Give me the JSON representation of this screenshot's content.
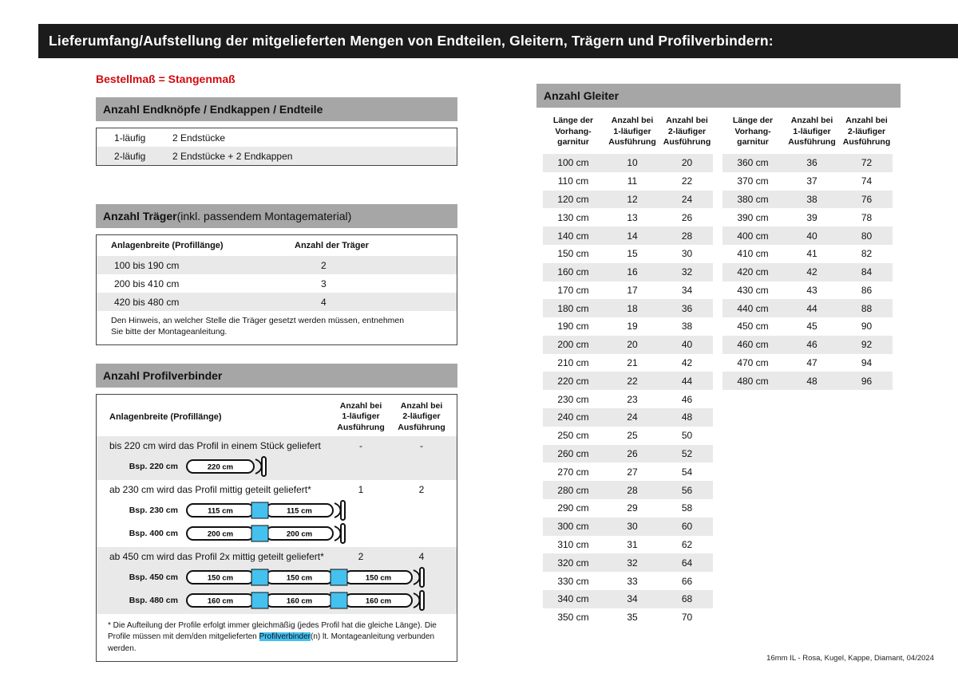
{
  "page": {
    "title": "Lieferumfang/Aufstellung der mitgelieferten Mengen von Endteilen, Gleitern, Trägern und Profilverbindern:",
    "subtitle": "Bestellmaß = Stangenmaß",
    "footer": "16mm IL - Rosa, Kugel, Kappe, Diamant, 04/2024"
  },
  "colors": {
    "header_black": "#1b1b1b",
    "section_bar_gray": "#a6a6a6",
    "row_stripe_gray": "#e9e9e9",
    "accent_red": "#d20a11",
    "highlight_cyan": "#45c1ef"
  },
  "endteile": {
    "header": "Anzahl Endknöpfe / Endkappen / Endteile",
    "rows": [
      {
        "label": "1-läufig",
        "value": "2 Endstücke"
      },
      {
        "label": "2-läufig",
        "value": "2 Endstücke + 2 Endkappen"
      }
    ]
  },
  "traeger": {
    "header_bold": "Anzahl Träger",
    "header_rest": " (inkl. passendem Montagematerial)",
    "col1": "Anlagenbreite (Profillänge)",
    "col2": "Anzahl der Träger",
    "rows": [
      {
        "range": "100 bis 190 cm",
        "count": "2"
      },
      {
        "range": "200 bis 410 cm",
        "count": "3"
      },
      {
        "range": "420 bis 480 cm",
        "count": "4"
      }
    ],
    "note": "Den Hinweis, an welcher Stelle die Träger gesetzt werden müssen, entnehmen Sie bitte der Montageanleitung."
  },
  "profilverbinder": {
    "header": "Anzahl Profilverbinder",
    "col1": "Anlagenbreite (Profillänge)",
    "col2": "Anzahl bei\n1-läufiger\nAusführung",
    "col3": "Anzahl bei\n2-läufiger\nAusführung",
    "sections": [
      {
        "text": "bis 220 cm wird das Profil in einem Stück geliefert",
        "count1": "-",
        "count2": "-",
        "examples": [
          {
            "label": "Bsp. 220 cm",
            "segments": [
              "220 cm"
            ]
          }
        ]
      },
      {
        "text": "ab 230 cm wird das Profil mittig geteilt geliefert*",
        "count1": "1",
        "count2": "2",
        "examples": [
          {
            "label": "Bsp. 230 cm",
            "segments": [
              "115 cm",
              "115 cm"
            ]
          },
          {
            "label": "Bsp. 400 cm",
            "segments": [
              "200 cm",
              "200 cm"
            ]
          }
        ]
      },
      {
        "text": "ab 450 cm wird das Profil 2x mittig geteilt geliefert*",
        "count1": "2",
        "count2": "4",
        "examples": [
          {
            "label": "Bsp. 450 cm",
            "segments": [
              "150 cm",
              "150 cm",
              "150 cm"
            ]
          },
          {
            "label": "Bsp. 480 cm",
            "segments": [
              "160 cm",
              "160 cm",
              "160 cm"
            ]
          }
        ]
      }
    ],
    "footnote_pre": "* Die Aufteilung der Profile erfolgt immer gleichmäßig (jedes Profil hat die gleiche Länge). Die Profile müssen mit dem/den mitgelieferten ",
    "footnote_highlight": "Profilverbinder",
    "footnote_post": "(n) lt. Montageanleitung verbunden werden."
  },
  "gleiter": {
    "header": "Anzahl Gleiter",
    "col_length": "Länge der\nVorhang-\ngarnitur",
    "col_1l": "Anzahl bei\n1-läufiger\nAusführung",
    "col_2l": "Anzahl bei\n2-läufiger\nAusführung",
    "table_left": [
      [
        "100 cm",
        "10",
        "20"
      ],
      [
        "110 cm",
        "11",
        "22"
      ],
      [
        "120 cm",
        "12",
        "24"
      ],
      [
        "130 cm",
        "13",
        "26"
      ],
      [
        "140 cm",
        "14",
        "28"
      ],
      [
        "150 cm",
        "15",
        "30"
      ],
      [
        "160 cm",
        "16",
        "32"
      ],
      [
        "170 cm",
        "17",
        "34"
      ],
      [
        "180 cm",
        "18",
        "36"
      ],
      [
        "190 cm",
        "19",
        "38"
      ],
      [
        "200 cm",
        "20",
        "40"
      ],
      [
        "210 cm",
        "21",
        "42"
      ],
      [
        "220 cm",
        "22",
        "44"
      ],
      [
        "230 cm",
        "23",
        "46"
      ],
      [
        "240 cm",
        "24",
        "48"
      ],
      [
        "250 cm",
        "25",
        "50"
      ],
      [
        "260 cm",
        "26",
        "52"
      ],
      [
        "270 cm",
        "27",
        "54"
      ],
      [
        "280 cm",
        "28",
        "56"
      ],
      [
        "290 cm",
        "29",
        "58"
      ],
      [
        "300 cm",
        "30",
        "60"
      ],
      [
        "310 cm",
        "31",
        "62"
      ],
      [
        "320 cm",
        "32",
        "64"
      ],
      [
        "330 cm",
        "33",
        "66"
      ],
      [
        "340 cm",
        "34",
        "68"
      ],
      [
        "350 cm",
        "35",
        "70"
      ]
    ],
    "table_right": [
      [
        "360 cm",
        "36",
        "72"
      ],
      [
        "370 cm",
        "37",
        "74"
      ],
      [
        "380 cm",
        "38",
        "76"
      ],
      [
        "390 cm",
        "39",
        "78"
      ],
      [
        "400 cm",
        "40",
        "80"
      ],
      [
        "410 cm",
        "41",
        "82"
      ],
      [
        "420 cm",
        "42",
        "84"
      ],
      [
        "430 cm",
        "43",
        "86"
      ],
      [
        "440 cm",
        "44",
        "88"
      ],
      [
        "450 cm",
        "45",
        "90"
      ],
      [
        "460 cm",
        "46",
        "92"
      ],
      [
        "470 cm",
        "47",
        "94"
      ],
      [
        "480 cm",
        "48",
        "96"
      ]
    ]
  }
}
